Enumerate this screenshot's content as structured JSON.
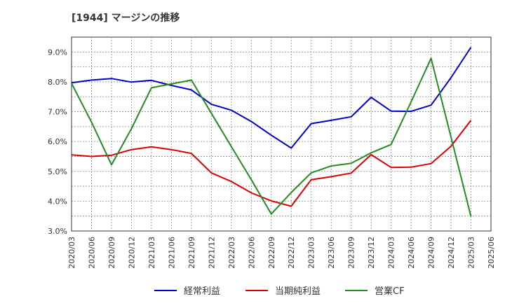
{
  "chart_data": {
    "type": "line",
    "title": "[1944]  マージンの推移",
    "xlabel": "",
    "ylabel": "",
    "categories": [
      "2020/03",
      "2020/06",
      "2020/09",
      "2020/12",
      "2021/03",
      "2021/06",
      "2021/09",
      "2021/12",
      "2022/03",
      "2022/06",
      "2022/09",
      "2022/12",
      "2023/03",
      "2023/06",
      "2023/09",
      "2023/12",
      "2024/03",
      "2024/06",
      "2024/09",
      "2024/12",
      "2025/03",
      "2025/06"
    ],
    "ylim": [
      3.0,
      9.5
    ],
    "yticks": [
      3.0,
      4.0,
      5.0,
      6.0,
      7.0,
      8.0,
      9.0
    ],
    "ytick_labels": [
      "3.0%",
      "4.0%",
      "5.0%",
      "6.0%",
      "7.0%",
      "8.0%",
      "9.0%"
    ],
    "grid": true,
    "legend_position": "bottom",
    "series": [
      {
        "name": "経常利益",
        "color": "#0000cc",
        "values": [
          7.97,
          8.06,
          8.11,
          7.99,
          8.05,
          7.88,
          7.73,
          7.25,
          7.05,
          6.67,
          6.21,
          5.78,
          6.6,
          6.71,
          6.83,
          7.48,
          7.02,
          7.01,
          7.22,
          8.14,
          9.16,
          null
        ]
      },
      {
        "name": "当期純利益",
        "color": "#dd0000",
        "values": [
          5.55,
          5.5,
          5.54,
          5.73,
          5.82,
          5.73,
          5.6,
          4.95,
          4.66,
          4.28,
          4.01,
          3.83,
          4.72,
          4.82,
          4.94,
          5.56,
          5.13,
          5.14,
          5.26,
          5.84,
          6.71,
          null
        ]
      },
      {
        "name": "営業CF",
        "color": "#228b22",
        "values": [
          7.95,
          6.65,
          5.22,
          6.43,
          7.8,
          7.93,
          8.06,
          6.95,
          5.83,
          4.72,
          3.57,
          4.29,
          4.95,
          5.18,
          5.27,
          5.62,
          5.9,
          7.33,
          8.79,
          6.15,
          3.48,
          null
        ]
      }
    ]
  }
}
